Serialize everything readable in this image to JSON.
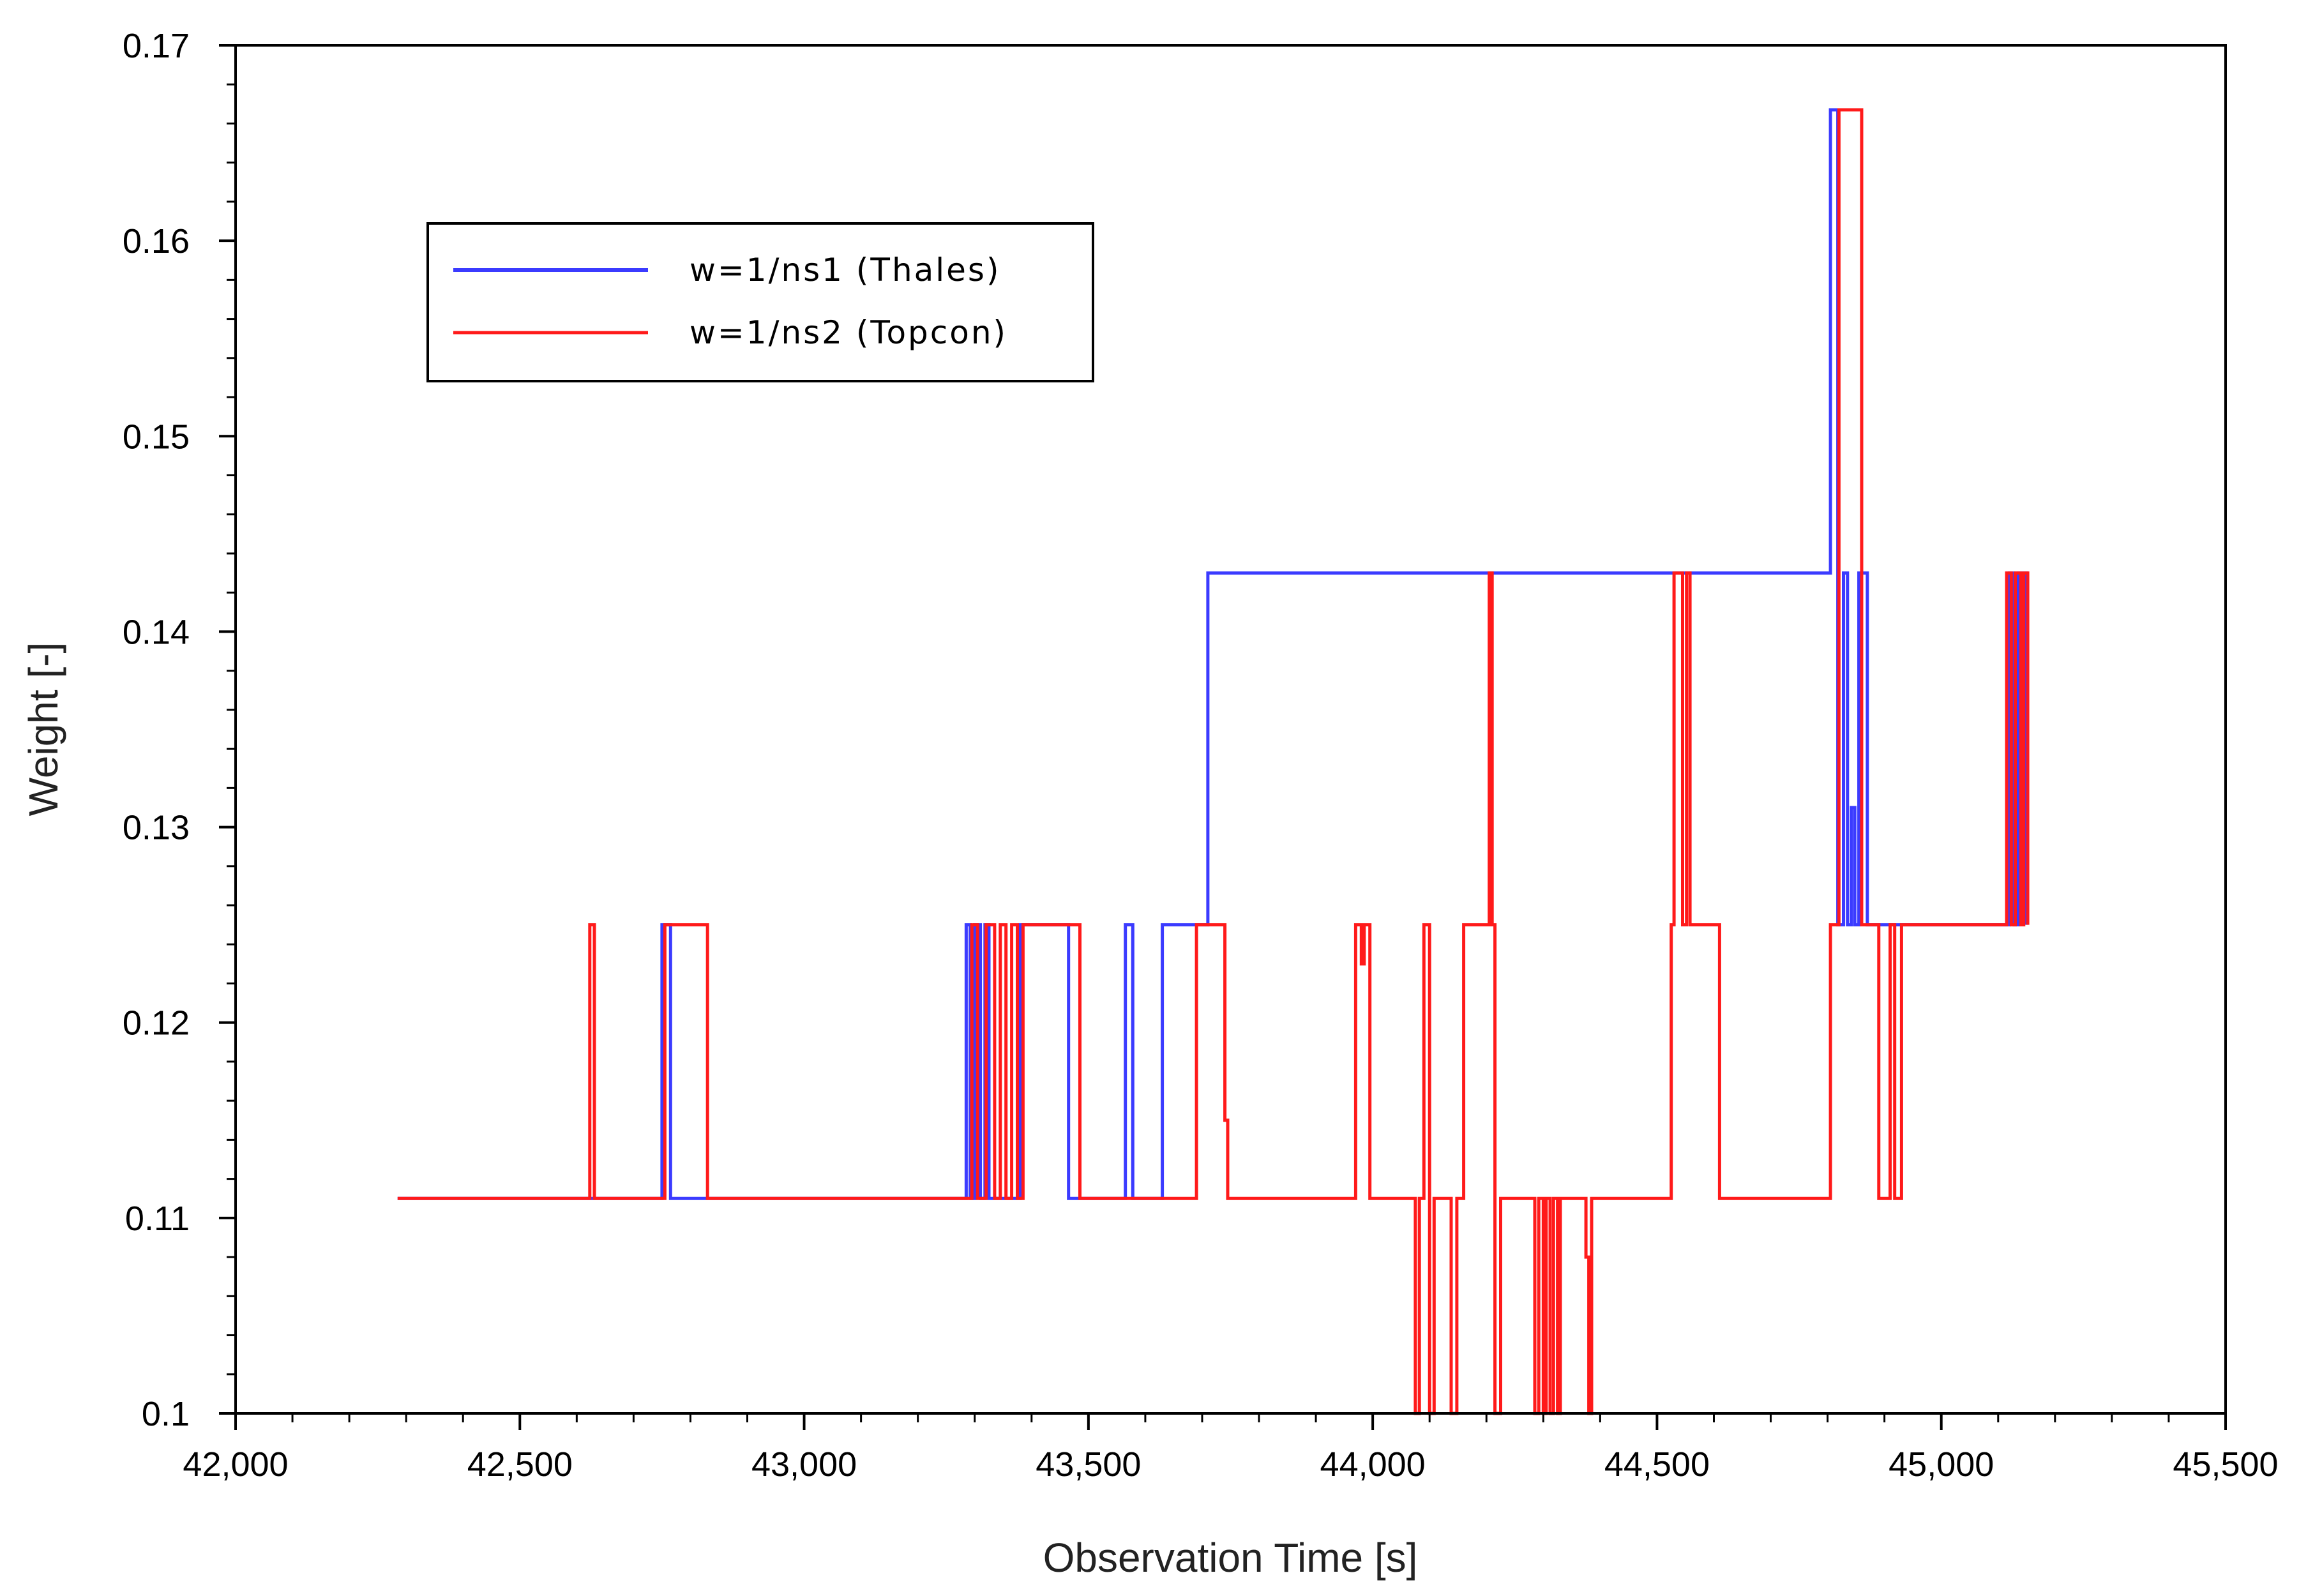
{
  "chart_data": {
    "type": "line",
    "title": "",
    "xlabel": "Observation Time [s]",
    "ylabel": "Weight [-]",
    "xlim": [
      42000,
      45500
    ],
    "ylim": [
      0.1,
      0.17
    ],
    "x_ticks": [
      42000,
      42500,
      43000,
      43500,
      44000,
      44500,
      45000,
      45500
    ],
    "x_tick_labels": [
      "42,000",
      "42,500",
      "43,000",
      "43,500",
      "44,000",
      "44,500",
      "45,000",
      "45,500"
    ],
    "y_ticks": [
      0.1,
      0.11,
      0.12,
      0.13,
      0.14,
      0.15,
      0.16,
      0.17
    ],
    "y_tick_labels": [
      "0.1",
      "0.11",
      "0.12",
      "0.13",
      "0.14",
      "0.15",
      "0.16",
      "0.17"
    ],
    "legend": {
      "position": "top-left"
    },
    "series": [
      {
        "name": "w=1/ns1 (Thales)",
        "color": "#3b3bff",
        "step": true,
        "points": [
          [
            42285,
            0.111
          ],
          [
            42750,
            0.111
          ],
          [
            42750,
            0.125
          ],
          [
            42765,
            0.125
          ],
          [
            42765,
            0.111
          ],
          [
            42830,
            0.111
          ],
          [
            43285,
            0.111
          ],
          [
            43285,
            0.125
          ],
          [
            43292,
            0.125
          ],
          [
            43292,
            0.111
          ],
          [
            43300,
            0.111
          ],
          [
            43300,
            0.125
          ],
          [
            43310,
            0.125
          ],
          [
            43310,
            0.111
          ],
          [
            43318,
            0.111
          ],
          [
            43318,
            0.125
          ],
          [
            43325,
            0.125
          ],
          [
            43325,
            0.111
          ],
          [
            43380,
            0.111
          ],
          [
            43380,
            0.125
          ],
          [
            43465,
            0.125
          ],
          [
            43465,
            0.111
          ],
          [
            43565,
            0.111
          ],
          [
            43565,
            0.125
          ],
          [
            43578,
            0.125
          ],
          [
            43578,
            0.111
          ],
          [
            43630,
            0.111
          ],
          [
            43630,
            0.125
          ],
          [
            43710,
            0.125
          ],
          [
            43710,
            0.143
          ],
          [
            44805,
            0.143
          ],
          [
            44805,
            0.1667
          ],
          [
            44818,
            0.1667
          ],
          [
            44818,
            0.125
          ],
          [
            44828,
            0.125
          ],
          [
            44828,
            0.143
          ],
          [
            44835,
            0.143
          ],
          [
            44835,
            0.125
          ],
          [
            44842,
            0.125
          ],
          [
            44842,
            0.131
          ],
          [
            44848,
            0.131
          ],
          [
            44848,
            0.125
          ],
          [
            44855,
            0.125
          ],
          [
            44855,
            0.143
          ],
          [
            44870,
            0.143
          ],
          [
            44870,
            0.125
          ],
          [
            44890,
            0.125
          ],
          [
            45120,
            0.125
          ],
          [
            45120,
            0.143
          ],
          [
            45128,
            0.143
          ],
          [
            45128,
            0.125
          ],
          [
            45135,
            0.125
          ],
          [
            45135,
            0.143
          ],
          [
            45150,
            0.143
          ],
          [
            45150,
            0.125
          ]
        ]
      },
      {
        "name": "w=1/ns2 (Topcon)",
        "color": "#ff1a1a",
        "step": true,
        "points": [
          [
            42285,
            0.111
          ],
          [
            42623,
            0.111
          ],
          [
            42623,
            0.125
          ],
          [
            42631,
            0.125
          ],
          [
            42631,
            0.111
          ],
          [
            42755,
            0.111
          ],
          [
            42755,
            0.125
          ],
          [
            42830,
            0.125
          ],
          [
            42830,
            0.111
          ],
          [
            43295,
            0.111
          ],
          [
            43295,
            0.125
          ],
          [
            43305,
            0.125
          ],
          [
            43305,
            0.111
          ],
          [
            43320,
            0.111
          ],
          [
            43320,
            0.125
          ],
          [
            43335,
            0.125
          ],
          [
            43335,
            0.111
          ],
          [
            43345,
            0.111
          ],
          [
            43345,
            0.125
          ],
          [
            43355,
            0.125
          ],
          [
            43355,
            0.111
          ],
          [
            43365,
            0.111
          ],
          [
            43365,
            0.125
          ],
          [
            43375,
            0.125
          ],
          [
            43375,
            0.111
          ],
          [
            43385,
            0.111
          ],
          [
            43385,
            0.125
          ],
          [
            43485,
            0.125
          ],
          [
            43485,
            0.111
          ],
          [
            43690,
            0.111
          ],
          [
            43690,
            0.125
          ],
          [
            43740,
            0.125
          ],
          [
            43740,
            0.115
          ],
          [
            43745,
            0.115
          ],
          [
            43745,
            0.111
          ],
          [
            43970,
            0.111
          ],
          [
            43970,
            0.125
          ],
          [
            43980,
            0.125
          ],
          [
            43980,
            0.123
          ],
          [
            43985,
            0.123
          ],
          [
            43985,
            0.125
          ],
          [
            43995,
            0.125
          ],
          [
            43995,
            0.111
          ],
          [
            44075,
            0.111
          ],
          [
            44075,
            0.1
          ],
          [
            44082,
            0.1
          ],
          [
            44082,
            0.111
          ],
          [
            44090,
            0.111
          ],
          [
            44090,
            0.125
          ],
          [
            44100,
            0.125
          ],
          [
            44100,
            0.1
          ],
          [
            44108,
            0.1
          ],
          [
            44108,
            0.111
          ],
          [
            44138,
            0.111
          ],
          [
            44138,
            0.1
          ],
          [
            44148,
            0.1
          ],
          [
            44148,
            0.111
          ],
          [
            44160,
            0.111
          ],
          [
            44160,
            0.125
          ],
          [
            44205,
            0.125
          ],
          [
            44205,
            0.143
          ],
          [
            44210,
            0.143
          ],
          [
            44210,
            0.125
          ],
          [
            44215,
            0.125
          ],
          [
            44215,
            0.1
          ],
          [
            44225,
            0.1
          ],
          [
            44225,
            0.111
          ],
          [
            44285,
            0.111
          ],
          [
            44285,
            0.1
          ],
          [
            44292,
            0.1
          ],
          [
            44292,
            0.111
          ],
          [
            44300,
            0.111
          ],
          [
            44300,
            0.1
          ],
          [
            44305,
            0.1
          ],
          [
            44305,
            0.111
          ],
          [
            44312,
            0.111
          ],
          [
            44312,
            0.1
          ],
          [
            44318,
            0.1
          ],
          [
            44318,
            0.111
          ],
          [
            44325,
            0.111
          ],
          [
            44325,
            0.1
          ],
          [
            44330,
            0.1
          ],
          [
            44330,
            0.111
          ],
          [
            44375,
            0.111
          ],
          [
            44375,
            0.108
          ],
          [
            44380,
            0.108
          ],
          [
            44380,
            0.1
          ],
          [
            44385,
            0.1
          ],
          [
            44385,
            0.111
          ],
          [
            44525,
            0.111
          ],
          [
            44525,
            0.125
          ],
          [
            44530,
            0.125
          ],
          [
            44530,
            0.143
          ],
          [
            44545,
            0.143
          ],
          [
            44545,
            0.125
          ],
          [
            44552,
            0.125
          ],
          [
            44552,
            0.143
          ],
          [
            44558,
            0.143
          ],
          [
            44558,
            0.125
          ],
          [
            44610,
            0.125
          ],
          [
            44610,
            0.111
          ],
          [
            44805,
            0.111
          ],
          [
            44805,
            0.125
          ],
          [
            44820,
            0.125
          ],
          [
            44820,
            0.1667
          ],
          [
            44860,
            0.1667
          ],
          [
            44860,
            0.125
          ],
          [
            44890,
            0.125
          ],
          [
            44890,
            0.111
          ],
          [
            44910,
            0.111
          ],
          [
            44910,
            0.125
          ],
          [
            44918,
            0.125
          ],
          [
            44918,
            0.111
          ],
          [
            44930,
            0.111
          ],
          [
            44930,
            0.125
          ],
          [
            45115,
            0.125
          ],
          [
            45115,
            0.143
          ],
          [
            45123,
            0.143
          ],
          [
            45123,
            0.125
          ],
          [
            45130,
            0.125
          ],
          [
            45130,
            0.143
          ],
          [
            45140,
            0.143
          ],
          [
            45140,
            0.125
          ],
          [
            45145,
            0.125
          ],
          [
            45145,
            0.143
          ],
          [
            45152,
            0.143
          ],
          [
            45152,
            0.125
          ]
        ]
      }
    ]
  }
}
